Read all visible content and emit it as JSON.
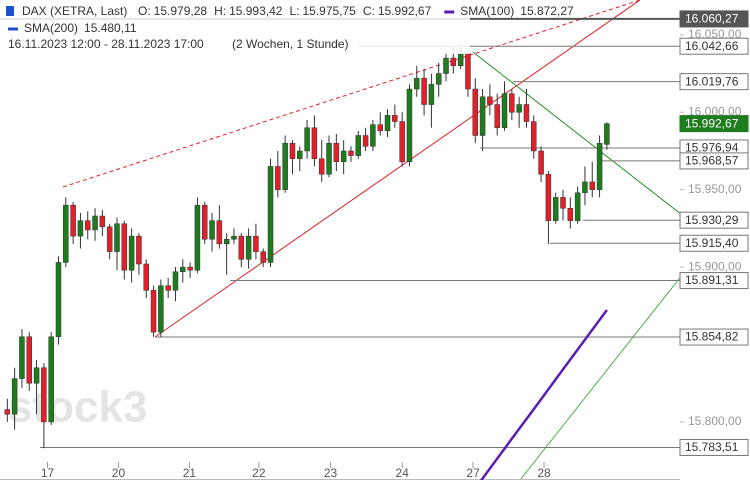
{
  "chart_data": {
    "type": "candlestick",
    "header": {
      "instrument": "DAX (XETRA, Last)",
      "ohlc": [
        {
          "label": "O:",
          "value": "15.979,28"
        },
        {
          "label": "H:",
          "value": "15.993,42"
        },
        {
          "label": "L:",
          "value": "15.975,75"
        },
        {
          "label": "C:",
          "value": "15.992,67"
        }
      ],
      "period": "16.11.2023 12:00 - 28.11.2023 17:00",
      "interval": "(2 Wochen, 1 Stunde)"
    },
    "watermark": "stock3",
    "up_color": "#1e7b1e",
    "down_color": "#e0202a",
    "open": [
      15808,
      15805,
      15828,
      15855,
      15825,
      15835,
      15800,
      15855,
      15903,
      15940,
      15920,
      15930,
      15924,
      15933,
      15926,
      15910,
      15928,
      15898,
      15920,
      15902,
      15885,
      15858,
      15888,
      15885,
      15897,
      15900,
      15898,
      15940,
      15918,
      15930,
      15915,
      15918,
      15920,
      15905,
      15920,
      15910,
      15903,
      15965,
      15950,
      15980,
      15970,
      15975,
      15990,
      15970,
      15960,
      15980,
      15968,
      15975,
      15972,
      15985,
      15978,
      15992,
      15988,
      15998,
      15994,
      15968,
      16015,
      16022,
      16005,
      16018,
      16025,
      16035,
      16030,
      16038,
      16015,
      15985,
      16010,
      16005,
      15990,
      16012,
      16000,
      16005,
      15994,
      15975,
      15960,
      15930,
      15945,
      15938,
      15930,
      15948,
      15955,
      15950,
      15979.28
    ],
    "high": [
      15815,
      15835,
      15860,
      15858,
      15840,
      15838,
      15858,
      15907,
      15945,
      15942,
      15935,
      15936,
      15938,
      15937,
      15928,
      15932,
      15930,
      15925,
      15922,
      15905,
      15888,
      15892,
      15893,
      15900,
      15905,
      15903,
      15945,
      15942,
      15935,
      15940,
      15922,
      15925,
      15922,
      15925,
      15928,
      15912,
      15970,
      15975,
      15985,
      15982,
      15978,
      15995,
      15998,
      15982,
      15985,
      15986,
      15982,
      15978,
      15988,
      15990,
      15995,
      16000,
      16002,
      16005,
      16000,
      16018,
      16030,
      16028,
      16025,
      16032,
      16040,
      16043,
      16042,
      16040,
      16022,
      16015,
      16018,
      16012,
      16020,
      16015,
      16010,
      16015,
      15998,
      15978,
      15962,
      15948,
      15950,
      15945,
      15952,
      15965,
      15968,
      15985,
      15993.42
    ],
    "low": [
      15800,
      15795,
      15822,
      15820,
      15805,
      15783,
      15798,
      15850,
      15900,
      15915,
      15912,
      15918,
      15917,
      15920,
      15905,
      15898,
      15892,
      15890,
      15895,
      15880,
      15855,
      15855,
      15880,
      15878,
      15890,
      15893,
      15896,
      15915,
      15910,
      15912,
      15895,
      15915,
      15900,
      15899,
      15905,
      15900,
      15900,
      15945,
      15948,
      15960,
      15962,
      15970,
      15965,
      15955,
      15958,
      15962,
      15960,
      15968,
      15970,
      15975,
      15975,
      15985,
      15984,
      15990,
      15965,
      15965,
      16010,
      15998,
      15990,
      16010,
      16020,
      16025,
      16028,
      16010,
      15980,
      15975,
      15998,
      15985,
      15988,
      15995,
      15990,
      15990,
      15970,
      15955,
      15915,
      15928,
      15930,
      15925,
      15928,
      15940,
      15945,
      15945,
      15975.75
    ],
    "close": [
      15805,
      15828,
      15855,
      15825,
      15835,
      15800,
      15855,
      15903,
      15940,
      15920,
      15930,
      15924,
      15933,
      15926,
      15910,
      15928,
      15898,
      15920,
      15902,
      15885,
      15858,
      15888,
      15885,
      15897,
      15900,
      15898,
      15940,
      15918,
      15930,
      15915,
      15918,
      15920,
      15905,
      15920,
      15910,
      15903,
      15965,
      15950,
      15980,
      15970,
      15975,
      15990,
      15970,
      15960,
      15980,
      15968,
      15975,
      15972,
      15985,
      15978,
      15992,
      15988,
      15998,
      15994,
      15968,
      16015,
      16022,
      16005,
      16018,
      16025,
      16035,
      16030,
      16038,
      16015,
      15985,
      16010,
      16005,
      15990,
      16012,
      16000,
      16005,
      15994,
      15975,
      15960,
      15930,
      15945,
      15938,
      15930,
      15948,
      15955,
      15950,
      15980,
      15992.67
    ],
    "indicators": [
      {
        "name": "SMA(100)",
        "value_label": "15.872,27",
        "color": "#5a1fb0",
        "values": [
          null,
          null,
          null,
          null,
          null,
          null,
          null,
          null,
          null,
          null,
          null,
          null,
          null,
          null,
          null,
          null,
          null,
          null,
          null,
          null,
          null,
          null,
          null,
          null,
          null,
          null,
          null,
          null,
          null,
          null,
          null,
          null,
          null,
          null,
          null,
          null,
          null,
          null,
          null,
          null,
          null,
          null,
          null,
          null,
          null,
          null,
          null,
          null,
          null,
          null,
          null,
          null,
          null,
          null,
          null,
          null,
          null,
          null,
          null,
          null,
          null,
          null,
          null,
          null,
          15757.1,
          15763.5,
          15769.9,
          15776.3,
          15782.7,
          15789.1,
          15795.5,
          15801.9,
          15808.3,
          15814.7,
          15821.1,
          15827.5,
          15833.9,
          15840.3,
          15846.7,
          15853.1,
          15859.5,
          15865.9,
          15872.27
        ]
      },
      {
        "name": "SMA(200)",
        "value_label": "15.480,11",
        "color": "#1f4fd1"
      }
    ],
    "xlim": [
      -1,
      92
    ],
    "xticks": [
      {
        "value": 5.5,
        "label": "17"
      },
      {
        "value": 15.2,
        "label": "20"
      },
      {
        "value": 24.9,
        "label": "21"
      },
      {
        "value": 34.4,
        "label": "22"
      },
      {
        "value": 44.2,
        "label": "23"
      },
      {
        "value": 54,
        "label": "24"
      },
      {
        "value": 63.7,
        "label": "27"
      },
      {
        "value": 73.4,
        "label": "28"
      }
    ],
    "ylim": [
      15762.5,
      16072.5
    ],
    "yticks": [
      {
        "value": 15800,
        "label": "15.800,00"
      },
      {
        "value": 15900,
        "label": "15.900,00"
      },
      {
        "value": 15950,
        "label": "15.950,00"
      },
      {
        "value": 16000,
        "label": "16.000,00"
      },
      {
        "value": 16050,
        "label": "16.050,00"
      }
    ],
    "levels": [
      {
        "value": 16060.27,
        "label": "16.060,27",
        "color": "#555555",
        "filled": true
      },
      {
        "value": 16042.66,
        "label": "16.042,66",
        "color": "#777777",
        "filled": false
      },
      {
        "value": 16019.76,
        "label": "16.019,76",
        "color": "#777777",
        "filled": false
      },
      {
        "value": 15992.67,
        "label": "15.992,67",
        "color": "#1e7b1e",
        "filled": true
      },
      {
        "value": 15976.94,
        "label": "15.976,94",
        "color": "#777777",
        "filled": false
      },
      {
        "value": 15968.57,
        "label": "15.968,57",
        "color": "#777777",
        "filled": false
      },
      {
        "value": 15930.29,
        "label": "15.930,29",
        "color": "#777777",
        "filled": false
      },
      {
        "value": 15915.4,
        "label": "15.915,40",
        "color": "#777777",
        "filled": false
      },
      {
        "value": 15891.31,
        "label": "15.891,31",
        "color": "#777777",
        "filled": false
      },
      {
        "value": 15854.82,
        "label": "15.854,82",
        "color": "#777777",
        "filled": false
      },
      {
        "value": 15783.51,
        "label": "15.783,51",
        "color": "#777777",
        "filled": false
      }
    ]
  }
}
